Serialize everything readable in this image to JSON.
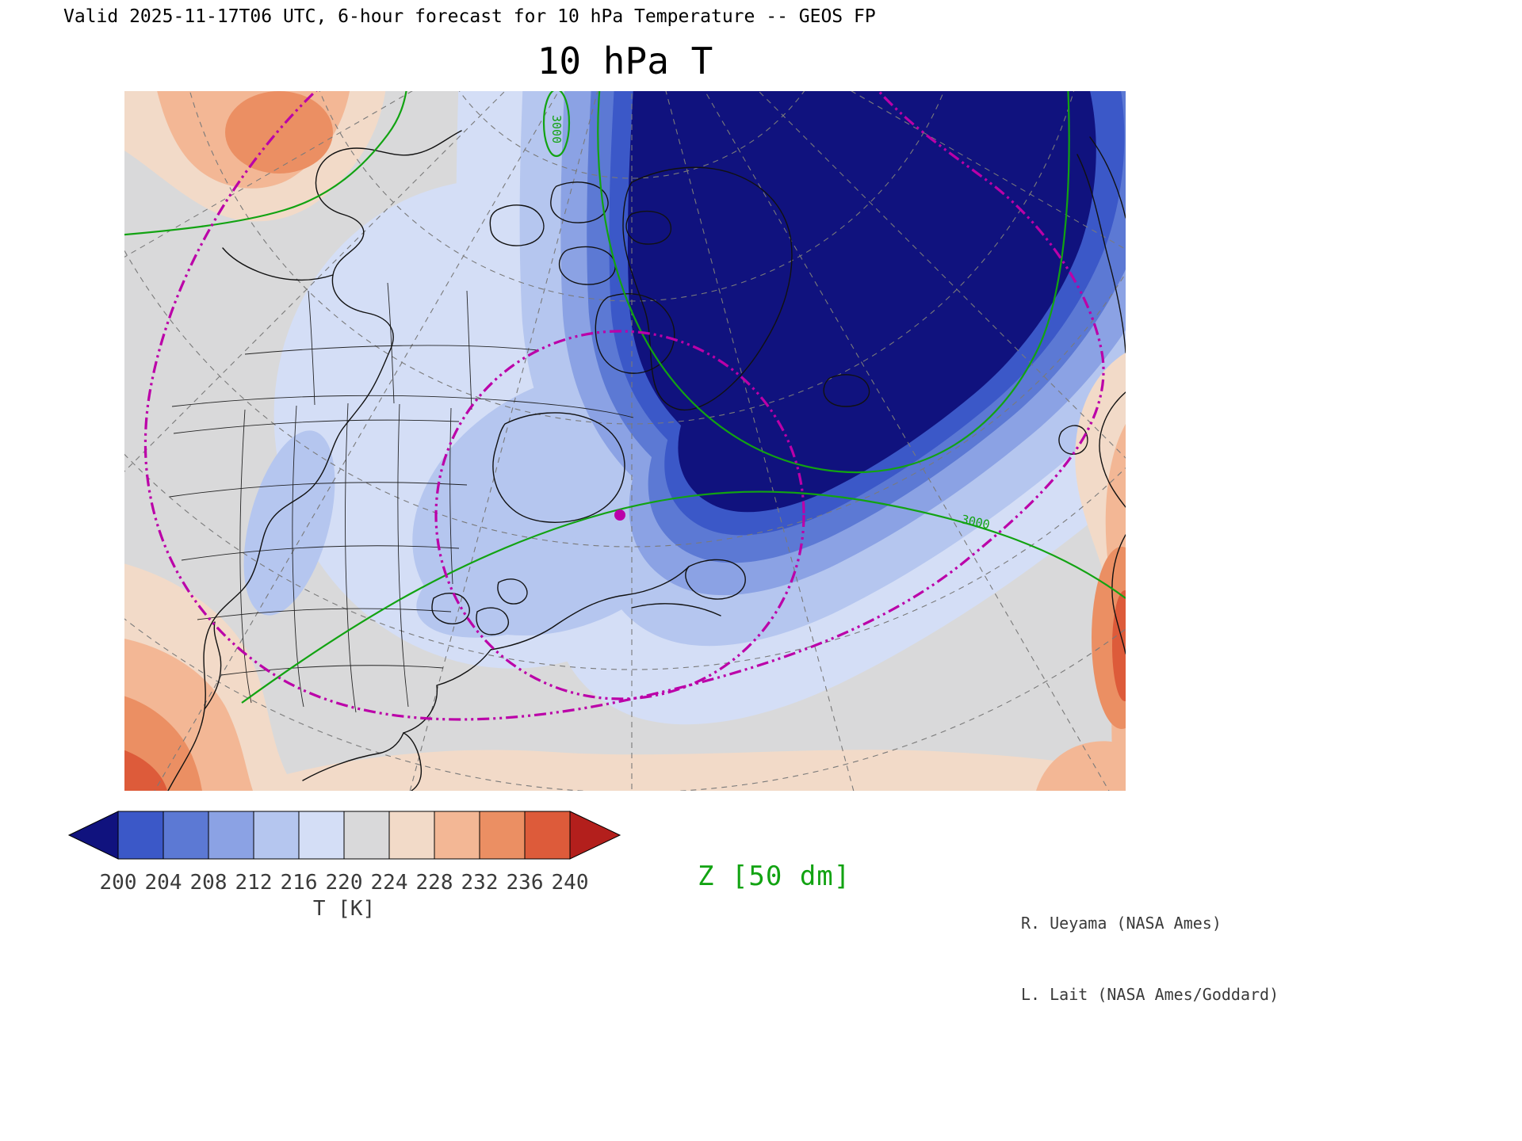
{
  "header": {
    "text": "Valid 2025-11-17T06 UTC, 6-hour forecast for 10 hPa Temperature -- GEOS FP"
  },
  "title": "10 hPa T",
  "map": {
    "z_contour_labels": [
      "3000",
      "3000"
    ]
  },
  "z_legend": "Z [50 dm]",
  "credits": [
    "R. Ueyama (NASA Ames)",
    "L. Lait (NASA Ames/Goddard)"
  ],
  "colors": {
    "t_below_200": "#10127e",
    "t_200_204": "#3b58c8",
    "t_204_208": "#5c79d4",
    "t_208_212": "#8ba2e4",
    "t_212_216": "#b5c6ef",
    "t_216_220": "#d4def6",
    "t_220_224": "#d9d9da",
    "t_224_228": "#f2dac8",
    "t_228_232": "#f3b795",
    "t_232_236": "#eb8f63",
    "t_236_240": "#dd5b3a",
    "t_above_240": "#b31f1c",
    "z_contour": "#12a312",
    "vortex_edge": "#bb00a8",
    "coastline": "#111111",
    "graticule": "#7a7a7a",
    "tick_text": "#3a3a3a"
  },
  "chart_data": {
    "type": "heatmap",
    "title": "10 hPa T",
    "header": "Valid 2025-11-17T06 UTC, 6-hour forecast for 10 hPa Temperature -- GEOS FP",
    "model": "GEOS FP",
    "valid_time": "2025-11-17T06 UTC",
    "forecast_hour": 6,
    "level_hPa": 10,
    "variable": "Temperature",
    "units": "K",
    "region": "North America / Arctic polar stereographic view",
    "colorbar": {
      "label": "T [K]",
      "ticks": [
        "200",
        "204",
        "208",
        "212",
        "216",
        "220",
        "224",
        "228",
        "232",
        "236",
        "240"
      ],
      "tick_values": [
        200,
        204,
        208,
        212,
        216,
        220,
        224,
        228,
        232,
        236,
        240
      ],
      "segment_colors": [
        "#10127e",
        "#3b58c8",
        "#5c79d4",
        "#8ba2e4",
        "#b5c6ef",
        "#d4def6",
        "#d9d9da",
        "#f2dac8",
        "#f3b795",
        "#eb8f63",
        "#dd5b3a",
        "#b31f1c"
      ]
    },
    "overlays": [
      {
        "name": "geopotential-height-contours",
        "label": "Z [50 dm]",
        "style": "solid green contours",
        "contour_labels": [
          "3000"
        ]
      },
      {
        "name": "vortex-edge-contours",
        "style": "magenta dash-dot contours with center dot"
      },
      {
        "name": "graticule",
        "style": "gray dashed latitude/longitude grid"
      },
      {
        "name": "coastlines-and-borders",
        "style": "black outlines"
      }
    ],
    "features": [
      "Polar vortex cold core below 200 K covering the Arctic, Greenland and the North Atlantic",
      "Concentric warming bands (204-220 K) wrapping the vortex across Canada and the eastern United States",
      "Warm 224-240 K air along the southern, western and eastern map edges",
      "Magenta dash-dot vortex-edge contour encircling the hemisphere with inner lobe over eastern Canada"
    ]
  }
}
